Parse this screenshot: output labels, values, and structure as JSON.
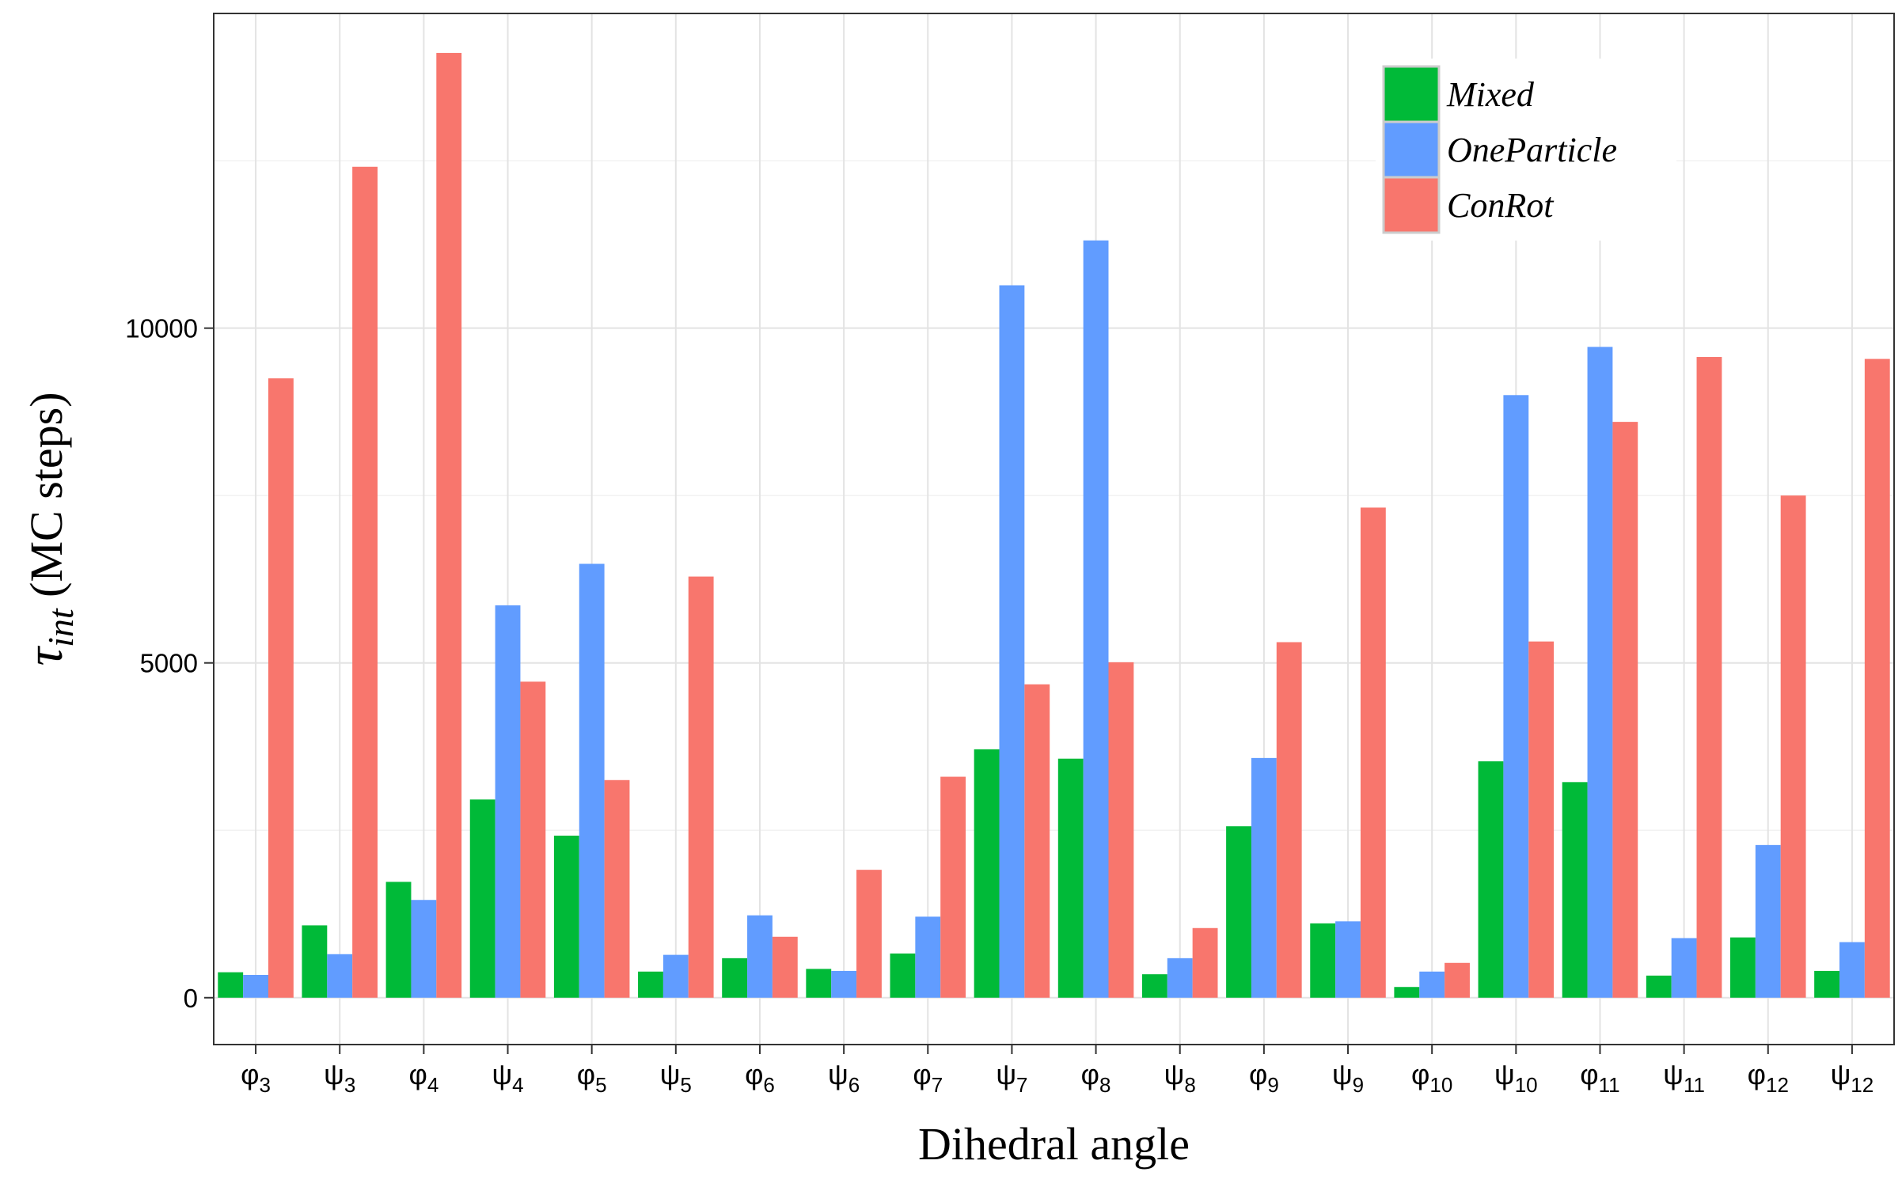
{
  "chart_data": {
    "type": "bar",
    "title": "",
    "xlabel": "Dihedral angle",
    "ylabel": {
      "symbol": "τ",
      "subscript": "int",
      "rest": " (MC steps)"
    },
    "ylim": [
      -700,
      14700
    ],
    "yticks": [
      0,
      5000,
      10000
    ],
    "ytick_labels": [
      "0",
      "5000",
      "10000"
    ],
    "grid": true,
    "legend_position": "top-right",
    "categories": [
      {
        "sym": "φ",
        "sub": "3"
      },
      {
        "sym": "ψ",
        "sub": "3"
      },
      {
        "sym": "φ",
        "sub": "4"
      },
      {
        "sym": "ψ",
        "sub": "4"
      },
      {
        "sym": "φ",
        "sub": "5"
      },
      {
        "sym": "ψ",
        "sub": "5"
      },
      {
        "sym": "φ",
        "sub": "6"
      },
      {
        "sym": "ψ",
        "sub": "6"
      },
      {
        "sym": "φ",
        "sub": "7"
      },
      {
        "sym": "ψ",
        "sub": "7"
      },
      {
        "sym": "φ",
        "sub": "8"
      },
      {
        "sym": "ψ",
        "sub": "8"
      },
      {
        "sym": "φ",
        "sub": "9"
      },
      {
        "sym": "ψ",
        "sub": "9"
      },
      {
        "sym": "φ",
        "sub": "10"
      },
      {
        "sym": "ψ",
        "sub": "10"
      },
      {
        "sym": "φ",
        "sub": "11"
      },
      {
        "sym": "ψ",
        "sub": "11"
      },
      {
        "sym": "φ",
        "sub": "12"
      },
      {
        "sym": "ψ",
        "sub": "12"
      }
    ],
    "series": [
      {
        "name": "Mixed",
        "color": "#00ba38",
        "values": [
          380,
          1080,
          1730,
          2960,
          2420,
          390,
          590,
          430,
          660,
          3710,
          3570,
          350,
          2560,
          1110,
          160,
          3530,
          3220,
          330,
          900,
          400
        ]
      },
      {
        "name": "OneParticle",
        "color": "#619cff",
        "values": [
          340,
          650,
          1460,
          5860,
          6480,
          640,
          1230,
          400,
          1210,
          10640,
          11310,
          590,
          3580,
          1140,
          390,
          9000,
          9720,
          890,
          2280,
          830
        ]
      },
      {
        "name": "ConRot",
        "color": "#f8766d",
        "values": [
          9250,
          12410,
          14110,
          4720,
          3250,
          6290,
          910,
          1910,
          3300,
          4680,
          5010,
          1040,
          5310,
          7320,
          520,
          5320,
          8600,
          9570,
          7500,
          9540
        ]
      }
    ]
  }
}
